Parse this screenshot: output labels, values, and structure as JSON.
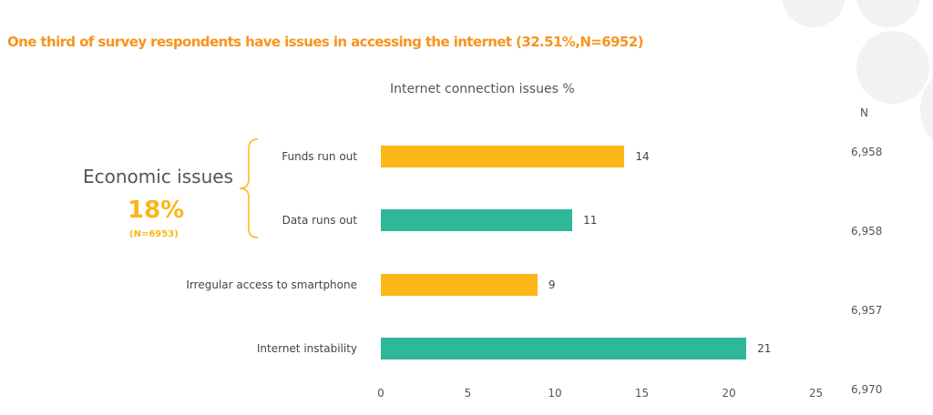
{
  "headline": "One third of survey respondents have issues in accessing the internet (32.51%,N=6952)",
  "annotation": {
    "label": "Economic issues",
    "percent": "18%",
    "n": "(N=6953)",
    "color": "#fbb617"
  },
  "chart_data": {
    "type": "bar",
    "orientation": "horizontal",
    "title": "Internet connection issues %",
    "categories": [
      "Funds run out",
      "Data runs out",
      "Irregular access to smartphone",
      "Internet instability"
    ],
    "values": [
      14,
      11,
      9,
      21
    ],
    "colors": [
      "#fbb617",
      "#2fb79a",
      "#fbb617",
      "#2fb79a"
    ],
    "xlim": [
      0,
      25
    ],
    "xticks": [
      "0",
      "5",
      "10",
      "15",
      "20",
      "25"
    ],
    "grid": false,
    "n_header": "N",
    "n_values": [
      "6,958",
      "6,958",
      "6,957",
      "6,970"
    ]
  }
}
